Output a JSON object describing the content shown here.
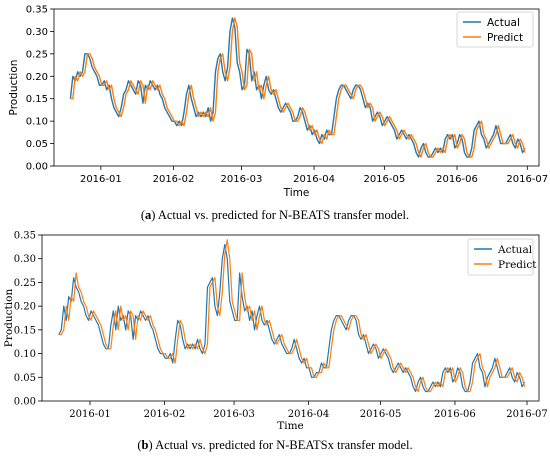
{
  "chart_data": [
    {
      "type": "line",
      "panel": "a",
      "xlabel": "Time",
      "ylabel": "Production",
      "ylim": [
        0.0,
        0.35
      ],
      "yticks": [
        "0.00",
        "0.05",
        "0.10",
        "0.15",
        "0.20",
        "0.25",
        "0.30",
        "0.35"
      ],
      "xticks": [
        "2016-01",
        "2016-02",
        "2016-03",
        "2016-04",
        "2016-05",
        "2016-06",
        "2016-07"
      ],
      "x_start": "2015-12-19",
      "x_end": "2016-06-30",
      "legend_position": "top-right",
      "grid": false,
      "series": [
        {
          "name": "Actual",
          "color": "#1f77b4",
          "values": [
            0.15,
            0.2,
            0.19,
            0.21,
            0.2,
            0.21,
            0.25,
            0.25,
            0.24,
            0.22,
            0.21,
            0.2,
            0.18,
            0.18,
            0.19,
            0.17,
            0.18,
            0.15,
            0.13,
            0.12,
            0.11,
            0.13,
            0.16,
            0.17,
            0.19,
            0.18,
            0.17,
            0.16,
            0.19,
            0.18,
            0.14,
            0.18,
            0.17,
            0.19,
            0.18,
            0.17,
            0.18,
            0.16,
            0.15,
            0.13,
            0.12,
            0.11,
            0.1,
            0.1,
            0.09,
            0.1,
            0.09,
            0.12,
            0.16,
            0.18,
            0.15,
            0.13,
            0.11,
            0.12,
            0.11,
            0.12,
            0.11,
            0.13,
            0.1,
            0.12,
            0.21,
            0.24,
            0.25,
            0.21,
            0.19,
            0.22,
            0.3,
            0.33,
            0.31,
            0.23,
            0.21,
            0.17,
            0.18,
            0.26,
            0.25,
            0.19,
            0.21,
            0.17,
            0.18,
            0.15,
            0.18,
            0.2,
            0.17,
            0.16,
            0.17,
            0.15,
            0.13,
            0.12,
            0.13,
            0.14,
            0.13,
            0.12,
            0.1,
            0.1,
            0.11,
            0.13,
            0.12,
            0.1,
            0.08,
            0.09,
            0.07,
            0.08,
            0.06,
            0.05,
            0.07,
            0.06,
            0.08,
            0.07,
            0.07,
            0.11,
            0.15,
            0.17,
            0.18,
            0.18,
            0.17,
            0.16,
            0.15,
            0.17,
            0.18,
            0.18,
            0.17,
            0.15,
            0.13,
            0.14,
            0.13,
            0.1,
            0.11,
            0.12,
            0.11,
            0.09,
            0.1,
            0.11,
            0.1,
            0.09,
            0.08,
            0.06,
            0.07,
            0.08,
            0.07,
            0.06,
            0.07,
            0.06,
            0.05,
            0.03,
            0.02,
            0.04,
            0.05,
            0.03,
            0.02,
            0.02,
            0.03,
            0.04,
            0.03,
            0.04,
            0.03,
            0.06,
            0.07,
            0.06,
            0.07,
            0.04,
            0.05,
            0.07,
            0.06,
            0.03,
            0.02,
            0.02,
            0.04,
            0.08,
            0.09,
            0.1,
            0.07,
            0.06,
            0.04,
            0.05,
            0.06,
            0.07,
            0.09,
            0.07,
            0.05,
            0.05,
            0.05,
            0.06,
            0.07,
            0.05,
            0.04,
            0.06,
            0.05,
            0.03,
            0.04
          ]
        },
        {
          "name": "Predict",
          "color": "#ff7f0e",
          "values": [
            0.15,
            0.15,
            0.2,
            0.19,
            0.21,
            0.2,
            0.21,
            0.25,
            0.25,
            0.24,
            0.22,
            0.21,
            0.2,
            0.18,
            0.18,
            0.19,
            0.17,
            0.18,
            0.15,
            0.13,
            0.12,
            0.11,
            0.13,
            0.16,
            0.17,
            0.19,
            0.18,
            0.17,
            0.16,
            0.19,
            0.18,
            0.14,
            0.18,
            0.17,
            0.19,
            0.18,
            0.17,
            0.18,
            0.16,
            0.15,
            0.13,
            0.12,
            0.11,
            0.1,
            0.1,
            0.09,
            0.1,
            0.09,
            0.12,
            0.16,
            0.18,
            0.15,
            0.13,
            0.11,
            0.12,
            0.11,
            0.12,
            0.11,
            0.13,
            0.1,
            0.12,
            0.21,
            0.24,
            0.25,
            0.21,
            0.19,
            0.22,
            0.3,
            0.33,
            0.31,
            0.23,
            0.21,
            0.17,
            0.18,
            0.26,
            0.25,
            0.19,
            0.21,
            0.17,
            0.18,
            0.15,
            0.18,
            0.2,
            0.17,
            0.16,
            0.17,
            0.15,
            0.13,
            0.12,
            0.13,
            0.14,
            0.13,
            0.12,
            0.1,
            0.1,
            0.11,
            0.13,
            0.12,
            0.1,
            0.08,
            0.09,
            0.07,
            0.08,
            0.06,
            0.05,
            0.07,
            0.06,
            0.08,
            0.07,
            0.07,
            0.11,
            0.15,
            0.17,
            0.18,
            0.18,
            0.17,
            0.16,
            0.15,
            0.17,
            0.18,
            0.18,
            0.17,
            0.15,
            0.13,
            0.14,
            0.13,
            0.1,
            0.11,
            0.12,
            0.11,
            0.09,
            0.1,
            0.11,
            0.1,
            0.09,
            0.08,
            0.06,
            0.07,
            0.08,
            0.07,
            0.06,
            0.07,
            0.06,
            0.05,
            0.03,
            0.02,
            0.04,
            0.05,
            0.03,
            0.02,
            0.02,
            0.03,
            0.04,
            0.03,
            0.04,
            0.03,
            0.06,
            0.07,
            0.06,
            0.07,
            0.04,
            0.05,
            0.07,
            0.06,
            0.03,
            0.02,
            0.02,
            0.04,
            0.08,
            0.09,
            0.1,
            0.07,
            0.06,
            0.04,
            0.05,
            0.06,
            0.07,
            0.09,
            0.07,
            0.05,
            0.05,
            0.05,
            0.06,
            0.07,
            0.05,
            0.04,
            0.06,
            0.05,
            0.03
          ]
        }
      ]
    },
    {
      "type": "line",
      "panel": "b",
      "xlabel": "Time",
      "ylabel": "Production",
      "ylim": [
        0.0,
        0.35
      ],
      "yticks": [
        "0.00",
        "0.05",
        "0.10",
        "0.15",
        "0.20",
        "0.25",
        "0.30",
        "0.35"
      ],
      "xticks": [
        "2016-01",
        "2016-02",
        "2016-03",
        "2016-04",
        "2016-05",
        "2016-06",
        "2016-07"
      ],
      "x_start": "2015-12-19",
      "x_end": "2016-06-30",
      "legend_position": "top-right",
      "grid": false,
      "series": [
        {
          "name": "Actual",
          "color": "#1f77b4",
          "values": [
            0.14,
            0.15,
            0.2,
            0.17,
            0.22,
            0.21,
            0.26,
            0.24,
            0.23,
            0.21,
            0.2,
            0.18,
            0.17,
            0.19,
            0.18,
            0.17,
            0.16,
            0.14,
            0.12,
            0.11,
            0.11,
            0.16,
            0.19,
            0.15,
            0.2,
            0.17,
            0.18,
            0.15,
            0.19,
            0.18,
            0.13,
            0.18,
            0.17,
            0.19,
            0.18,
            0.17,
            0.18,
            0.16,
            0.15,
            0.13,
            0.11,
            0.1,
            0.1,
            0.09,
            0.09,
            0.1,
            0.08,
            0.13,
            0.17,
            0.16,
            0.13,
            0.11,
            0.12,
            0.11,
            0.12,
            0.11,
            0.13,
            0.11,
            0.1,
            0.12,
            0.24,
            0.25,
            0.26,
            0.2,
            0.18,
            0.23,
            0.3,
            0.33,
            0.3,
            0.21,
            0.19,
            0.17,
            0.17,
            0.27,
            0.22,
            0.19,
            0.2,
            0.17,
            0.19,
            0.15,
            0.18,
            0.2,
            0.17,
            0.16,
            0.17,
            0.15,
            0.13,
            0.12,
            0.13,
            0.14,
            0.12,
            0.11,
            0.1,
            0.1,
            0.11,
            0.13,
            0.11,
            0.09,
            0.08,
            0.09,
            0.07,
            0.07,
            0.05,
            0.05,
            0.06,
            0.06,
            0.08,
            0.07,
            0.07,
            0.11,
            0.15,
            0.17,
            0.18,
            0.18,
            0.17,
            0.16,
            0.15,
            0.17,
            0.18,
            0.18,
            0.17,
            0.14,
            0.13,
            0.14,
            0.12,
            0.1,
            0.11,
            0.12,
            0.11,
            0.09,
            0.1,
            0.11,
            0.1,
            0.09,
            0.07,
            0.06,
            0.07,
            0.08,
            0.07,
            0.06,
            0.07,
            0.06,
            0.05,
            0.03,
            0.02,
            0.04,
            0.05,
            0.03,
            0.02,
            0.02,
            0.03,
            0.04,
            0.03,
            0.04,
            0.03,
            0.06,
            0.07,
            0.06,
            0.07,
            0.04,
            0.05,
            0.07,
            0.06,
            0.03,
            0.02,
            0.02,
            0.04,
            0.08,
            0.09,
            0.1,
            0.07,
            0.06,
            0.03,
            0.05,
            0.06,
            0.07,
            0.09,
            0.07,
            0.05,
            0.05,
            0.05,
            0.06,
            0.07,
            0.05,
            0.04,
            0.06,
            0.05,
            0.03,
            0.04
          ]
        },
        {
          "name": "Predict",
          "color": "#ff7f0e",
          "values": [
            0.14,
            0.14,
            0.15,
            0.2,
            0.17,
            0.22,
            0.21,
            0.27,
            0.24,
            0.23,
            0.21,
            0.2,
            0.18,
            0.17,
            0.19,
            0.18,
            0.17,
            0.16,
            0.14,
            0.12,
            0.11,
            0.11,
            0.16,
            0.19,
            0.15,
            0.2,
            0.17,
            0.18,
            0.15,
            0.19,
            0.18,
            0.13,
            0.18,
            0.17,
            0.19,
            0.18,
            0.17,
            0.18,
            0.16,
            0.15,
            0.13,
            0.11,
            0.1,
            0.1,
            0.09,
            0.09,
            0.1,
            0.08,
            0.13,
            0.17,
            0.16,
            0.13,
            0.11,
            0.12,
            0.11,
            0.12,
            0.11,
            0.13,
            0.11,
            0.1,
            0.12,
            0.24,
            0.25,
            0.26,
            0.2,
            0.18,
            0.23,
            0.31,
            0.34,
            0.3,
            0.21,
            0.19,
            0.17,
            0.17,
            0.27,
            0.22,
            0.19,
            0.2,
            0.17,
            0.19,
            0.15,
            0.18,
            0.2,
            0.17,
            0.16,
            0.17,
            0.15,
            0.13,
            0.12,
            0.13,
            0.14,
            0.12,
            0.11,
            0.1,
            0.1,
            0.11,
            0.13,
            0.11,
            0.09,
            0.08,
            0.09,
            0.07,
            0.07,
            0.05,
            0.05,
            0.06,
            0.06,
            0.08,
            0.07,
            0.07,
            0.11,
            0.15,
            0.17,
            0.18,
            0.18,
            0.17,
            0.16,
            0.15,
            0.17,
            0.18,
            0.18,
            0.17,
            0.14,
            0.13,
            0.14,
            0.12,
            0.1,
            0.11,
            0.12,
            0.11,
            0.09,
            0.1,
            0.11,
            0.1,
            0.09,
            0.07,
            0.06,
            0.07,
            0.08,
            0.07,
            0.06,
            0.07,
            0.06,
            0.05,
            0.03,
            0.02,
            0.04,
            0.05,
            0.03,
            0.02,
            0.02,
            0.03,
            0.04,
            0.03,
            0.04,
            0.03,
            0.06,
            0.07,
            0.06,
            0.07,
            0.04,
            0.05,
            0.07,
            0.06,
            0.03,
            0.02,
            0.02,
            0.04,
            0.08,
            0.09,
            0.1,
            0.07,
            0.06,
            0.03,
            0.05,
            0.06,
            0.07,
            0.09,
            0.07,
            0.05,
            0.05,
            0.05,
            0.06,
            0.07,
            0.05,
            0.04,
            0.06,
            0.05,
            0.03
          ]
        }
      ]
    }
  ],
  "captions": [
    {
      "letter": "a",
      "text": " Actual vs. predicted for N-BEATS transfer model."
    },
    {
      "letter": "b",
      "text": " Actual vs. predicted for N-BEATSx transfer model."
    }
  ]
}
